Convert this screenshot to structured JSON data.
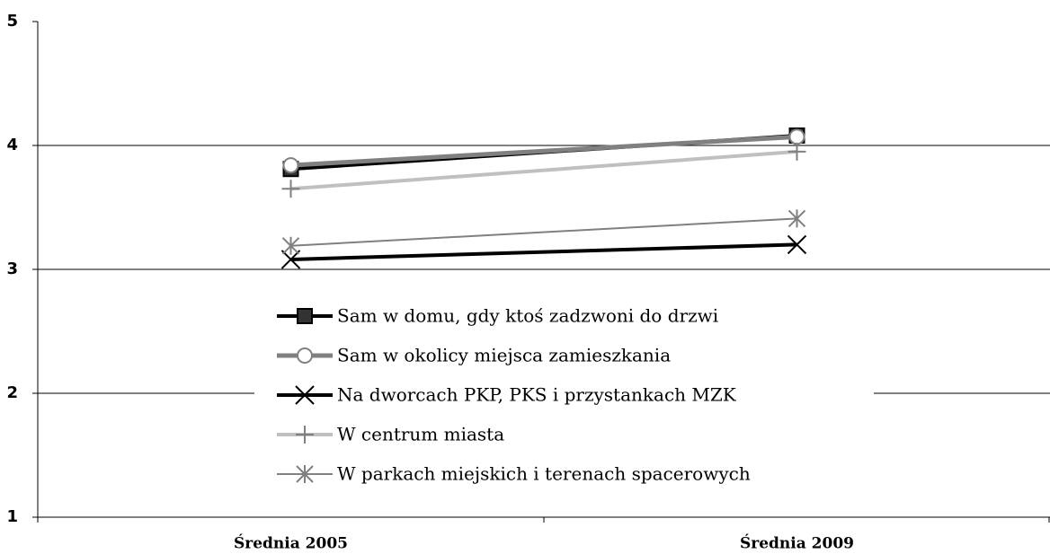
{
  "chart_data": {
    "type": "line",
    "categories": [
      "Średnia 2005",
      "Średnia 2009"
    ],
    "series": [
      {
        "name": "Sam w domu, gdy ktoś zadzwoni do drzwi",
        "color": "#000000",
        "marker": "square",
        "values": [
          3.81,
          4.08
        ]
      },
      {
        "name": "Sam w okolicy miejsca zamieszkania",
        "color": "#808080",
        "marker": "circle",
        "values": [
          3.84,
          4.07
        ]
      },
      {
        "name": "Na dworcach PKP, PKS i przystankach MZK",
        "color": "#000000",
        "marker": "x",
        "values": [
          3.08,
          3.2
        ]
      },
      {
        "name": "W centrum miasta",
        "color": "#c0c0c0",
        "marker": "plus",
        "values": [
          3.65,
          3.95
        ]
      },
      {
        "name": "W parkach miejskich i terenach spacerowych",
        "color": "#808080",
        "marker": "star",
        "values": [
          3.19,
          3.41
        ]
      }
    ],
    "ylim": [
      1,
      5
    ],
    "yticks": [
      1,
      2,
      3,
      4,
      5
    ],
    "grid": true,
    "legend": "center"
  }
}
